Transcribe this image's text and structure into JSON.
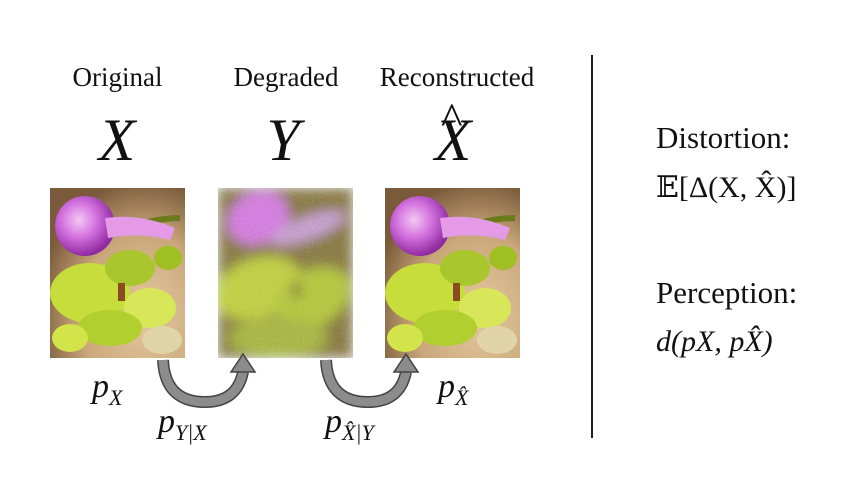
{
  "columns": [
    {
      "title": "Original",
      "variable": "X"
    },
    {
      "title": "Degraded",
      "variable": "Y"
    },
    {
      "title": "Reconstructed",
      "variable": "X",
      "accent": "^"
    }
  ],
  "distributions": {
    "p_x": {
      "base": "p",
      "sub": "X"
    },
    "p_xhat": {
      "base": "p",
      "sub": "X̂"
    },
    "channel": {
      "base": "p",
      "sub": "Y|X"
    },
    "decoder": {
      "base": "p",
      "sub": "X̂|Y"
    }
  },
  "metrics": {
    "distortion_label": "Distortion:",
    "distortion_formula": "𝔼[Δ(X, X̂)]",
    "perception_label": "Perception:",
    "perception_formula": "d(pX, pX̂)"
  },
  "colors": {
    "flower_magenta": "#c04fd0",
    "leaf_green": "#b6d234",
    "background_tan": "#c9a77a",
    "arrow_gray": "#888888"
  },
  "icons": [
    "curved-arrow-icon",
    "curved-arrow-icon"
  ]
}
